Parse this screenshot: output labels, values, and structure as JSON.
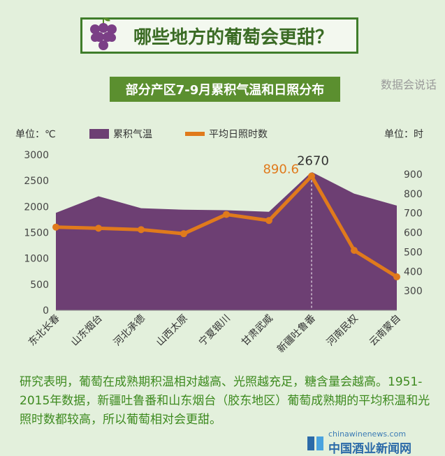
{
  "title": "哪些地方的葡萄会更甜？",
  "subtitle": "部分产区7-9月累积气温和日照分布",
  "logo": "数据会说话",
  "footer": {
    "url": "chinawinenews.com",
    "name": "中国酒业新闻网"
  },
  "note": "研究表明，葡萄在成熟期积温相对越高、光照越充足，糖含量会越高。1951-2015年数据，新疆吐鲁番和山东烟台（胶东地区）葡萄成熟期的平均积温和光照时数都较高，所以葡萄相对会更甜。",
  "colors": {
    "area": "#6d3f73",
    "line": "#e07a1c",
    "title": "#3a6b24"
  },
  "chart_data": {
    "type": "area+line",
    "categories": [
      "东北长春",
      "山东烟台",
      "河北承德",
      "山西太原",
      "宁夏银川",
      "甘肃武威",
      "新疆吐鲁番",
      "河南民权",
      "云南蒙自"
    ],
    "series": [
      {
        "name": "累积气温",
        "type": "area",
        "axis": "left",
        "values": [
          1880,
          2200,
          1970,
          1940,
          1930,
          1900,
          2670,
          2250,
          2020
        ]
      },
      {
        "name": "平均日照时数",
        "type": "line",
        "axis": "right",
        "values": [
          628,
          622,
          615,
          594,
          693,
          662,
          890.6,
          508,
          372
        ]
      }
    ],
    "left_axis": {
      "unit": "单位：℃",
      "ylim": [
        0,
        3000
      ],
      "ticks": [
        "0",
        "500",
        "1000",
        "1500",
        "2000",
        "2500",
        "3000"
      ]
    },
    "right_axis": {
      "unit": "单位：时",
      "ylim": [
        200,
        1000
      ],
      "ticks": [
        "400",
        "500",
        "600",
        "700",
        "800",
        "900",
        "300"
      ]
    },
    "annotations": [
      "2670",
      "890.6"
    ],
    "legend_position": "top"
  }
}
